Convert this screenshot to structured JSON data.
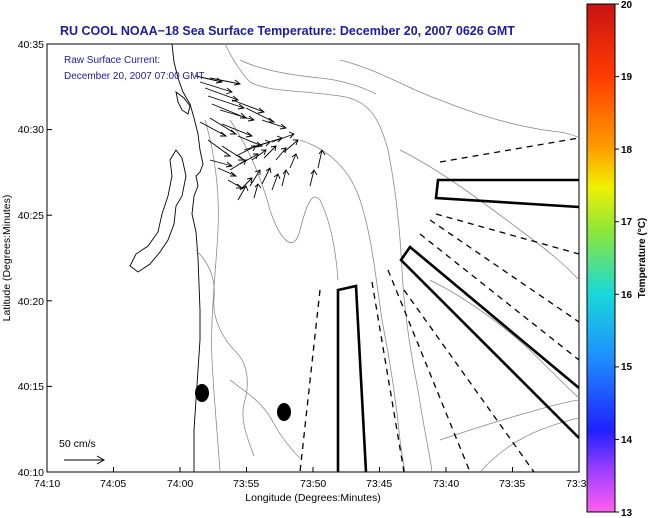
{
  "title": "RU COOL  NOAA−18  Sea Surface Temperature:  December 20, 2007 0626 GMT",
  "overlay": {
    "line1": "Raw Surface Current:",
    "line2": "December 20, 2007 07:00 GMT"
  },
  "scale_label": "50 cm/s",
  "map": {
    "xlabel": "Longitude (Degrees:Minutes)",
    "ylabel": "Latitude (Degrees:Minutes)",
    "x_ticks": [
      "74:10",
      "74:05",
      "74:00",
      "73:55",
      "73:50",
      "73:45",
      "73:40",
      "73:35",
      "73:3"
    ],
    "y_ticks": [
      "40:35",
      "40:30",
      "40:25",
      "40:20",
      "40:15",
      "40:10"
    ]
  },
  "colorbar": {
    "label": "Temperature (°C)",
    "ticks": [
      "20",
      "19",
      "18",
      "17",
      "16",
      "15",
      "14",
      "13"
    ],
    "colors": [
      "#c81414",
      "#ff3a00",
      "#ff9a00",
      "#f0f000",
      "#8ae63c",
      "#19d9d9",
      "#2020ff",
      "#ff5ff0"
    ]
  }
}
